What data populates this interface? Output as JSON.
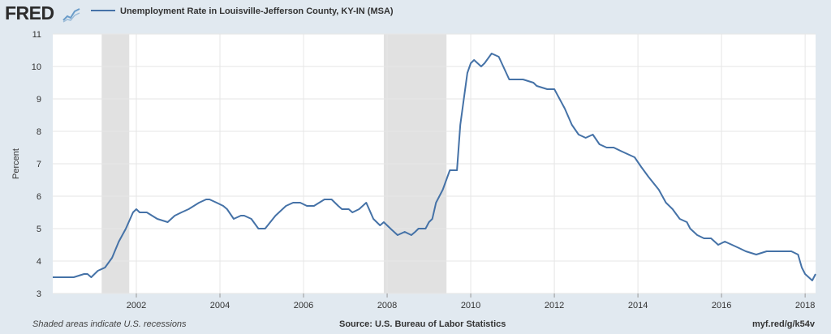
{
  "header": {
    "logo_text": "FRED",
    "logo_icon": "line-chart-icon",
    "legend_label": "Unemployment Rate in Louisville-Jefferson County, KY-IN (MSA)"
  },
  "footer": {
    "recession_note": "Shaded areas indicate U.S. recessions",
    "source": "Source: U.S. Bureau of Labor Statistics",
    "url": "myf.red/g/k54v"
  },
  "colors": {
    "line": "#4572a7",
    "recession": "#e1e1e1",
    "plot_bg": "#ffffff",
    "page_bg": "#e1e9f0",
    "grid": "#e6e6e6"
  },
  "chart_data": {
    "type": "line",
    "title": "",
    "xlabel": "",
    "ylabel": "Percent",
    "ylim": [
      3,
      11
    ],
    "xlim": [
      2000.0,
      2018.25
    ],
    "grid": true,
    "legend_position": "top-left",
    "y_ticks": [
      3,
      4,
      5,
      6,
      7,
      8,
      9,
      10,
      11
    ],
    "x_ticks": [
      2002,
      2004,
      2006,
      2008,
      2010,
      2012,
      2014,
      2016,
      2018
    ],
    "recessions": [
      [
        2001.17,
        2001.83
      ],
      [
        2007.92,
        2009.42
      ]
    ],
    "series": [
      {
        "name": "Unemployment Rate in Louisville-Jefferson County, KY-IN (MSA)",
        "x": [
          2000.0,
          2000.5,
          2000.75,
          2000.83,
          2000.92,
          2001.08,
          2001.25,
          2001.42,
          2001.58,
          2001.75,
          2001.92,
          2002.0,
          2002.08,
          2002.25,
          2002.5,
          2002.75,
          2002.92,
          2003.08,
          2003.25,
          2003.5,
          2003.67,
          2003.75,
          2003.92,
          2004.08,
          2004.17,
          2004.33,
          2004.5,
          2004.58,
          2004.75,
          2004.92,
          2005.08,
          2005.33,
          2005.58,
          2005.75,
          2005.92,
          2006.08,
          2006.25,
          2006.5,
          2006.67,
          2006.83,
          2006.92,
          2007.08,
          2007.17,
          2007.33,
          2007.5,
          2007.67,
          2007.83,
          2007.92,
          2008.08,
          2008.25,
          2008.42,
          2008.58,
          2008.67,
          2008.75,
          2008.92,
          2009.0,
          2009.08,
          2009.17,
          2009.33,
          2009.5,
          2009.67,
          2009.75,
          2009.92,
          2010.0,
          2010.08,
          2010.25,
          2010.33,
          2010.5,
          2010.67,
          2010.92,
          2011.08,
          2011.25,
          2011.5,
          2011.58,
          2011.83,
          2012.0,
          2012.25,
          2012.42,
          2012.58,
          2012.75,
          2012.92,
          2013.08,
          2013.25,
          2013.42,
          2013.58,
          2013.75,
          2013.92,
          2014.08,
          2014.25,
          2014.5,
          2014.67,
          2014.83,
          2015.0,
          2015.17,
          2015.25,
          2015.42,
          2015.58,
          2015.75,
          2015.92,
          2016.08,
          2016.25,
          2016.42,
          2016.58,
          2016.83,
          2017.08,
          2017.33,
          2017.5,
          2017.67,
          2017.83,
          2017.92,
          2018.0,
          2018.17,
          2018.25
        ],
        "values": [
          3.5,
          3.5,
          3.6,
          3.6,
          3.5,
          3.7,
          3.8,
          4.1,
          4.6,
          5.0,
          5.5,
          5.6,
          5.5,
          5.5,
          5.3,
          5.2,
          5.4,
          5.5,
          5.6,
          5.8,
          5.9,
          5.9,
          5.8,
          5.7,
          5.6,
          5.3,
          5.4,
          5.4,
          5.3,
          5.0,
          5.0,
          5.4,
          5.7,
          5.8,
          5.8,
          5.7,
          5.7,
          5.9,
          5.9,
          5.7,
          5.6,
          5.6,
          5.5,
          5.6,
          5.8,
          5.3,
          5.1,
          5.2,
          5.0,
          4.8,
          4.9,
          4.8,
          4.9,
          5.0,
          5.0,
          5.2,
          5.3,
          5.8,
          6.2,
          6.8,
          6.8,
          8.2,
          9.8,
          10.1,
          10.2,
          10.0,
          10.1,
          10.4,
          10.3,
          9.6,
          9.6,
          9.6,
          9.5,
          9.4,
          9.3,
          9.3,
          8.7,
          8.2,
          7.9,
          7.8,
          7.9,
          7.6,
          7.5,
          7.5,
          7.4,
          7.3,
          7.2,
          6.9,
          6.6,
          6.2,
          5.8,
          5.6,
          5.3,
          5.2,
          5.0,
          4.8,
          4.7,
          4.7,
          4.5,
          4.6,
          4.5,
          4.4,
          4.3,
          4.2,
          4.3,
          4.3,
          4.3,
          4.3,
          4.2,
          3.8,
          3.6,
          3.4,
          3.6
        ]
      }
    ]
  }
}
